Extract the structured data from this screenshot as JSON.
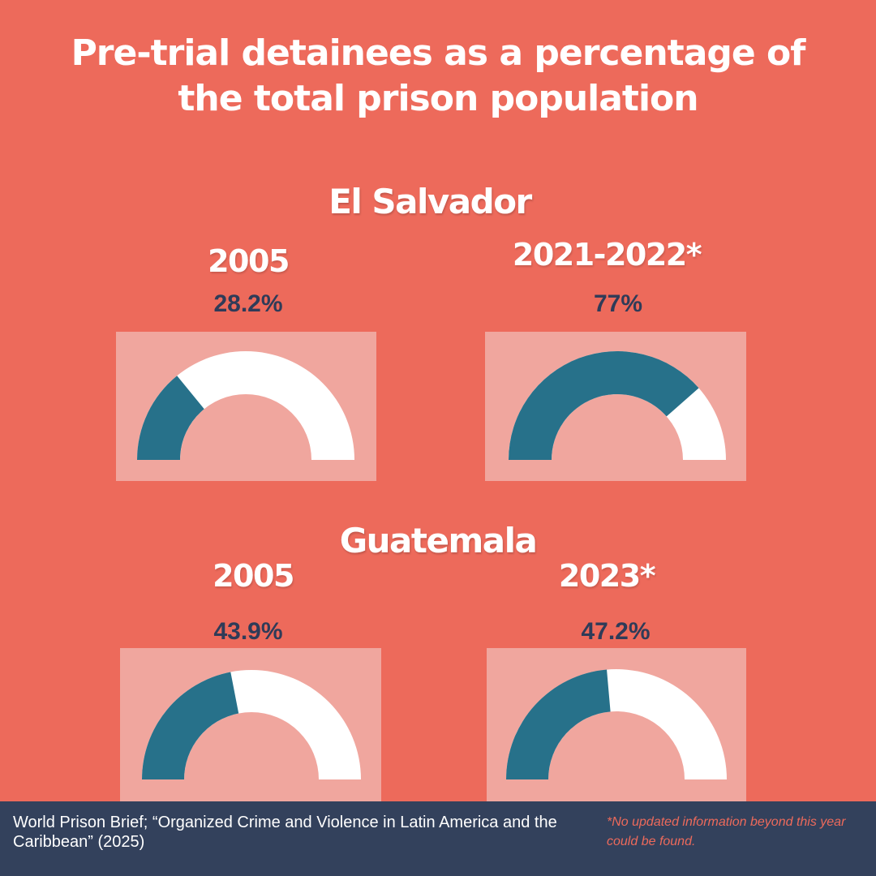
{
  "title_line1": "Pre-trial detainees as a percentage of",
  "title_line2": "the total prison population",
  "colors": {
    "background": "#ED6A5B",
    "box": "#F0A69E",
    "filled": "#27718A",
    "empty": "#FFFFFF",
    "value_text": "#2F3B58",
    "footer": "#33415C",
    "note": "#ED6A5B"
  },
  "countries": [
    {
      "name": "El Salvador"
    },
    {
      "name": "Guatemala"
    }
  ],
  "chart_data": [
    {
      "type": "gauge",
      "country": "El Salvador",
      "year": "2005",
      "value": 28.2,
      "label": "28.2%",
      "range": [
        0,
        100
      ]
    },
    {
      "type": "gauge",
      "country": "El Salvador",
      "year": "2021-2022*",
      "value": 77,
      "label": "77%",
      "range": [
        0,
        100
      ]
    },
    {
      "type": "gauge",
      "country": "Guatemala",
      "year": "2005",
      "value": 43.9,
      "label": "43.9%",
      "range": [
        0,
        100
      ]
    },
    {
      "type": "gauge",
      "country": "Guatemala",
      "year": "2023*",
      "value": 47.2,
      "label": "47.2%",
      "range": [
        0,
        100
      ]
    }
  ],
  "footer": {
    "source": "World Prison Brief; “Organized Crime and Violence in Latin America and the Caribbean” (2025)",
    "note": "*No updated information beyond this year could be found."
  }
}
